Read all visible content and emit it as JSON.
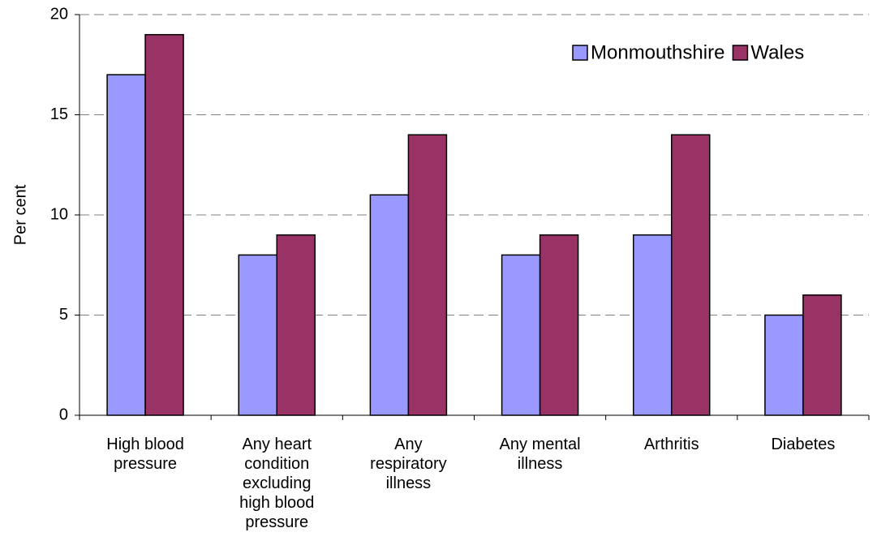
{
  "chart_data": {
    "type": "bar",
    "y_label": "Per cent",
    "categories": [
      "High blood pressure",
      "Any heart condition excluding high blood pressure",
      "Any respiratory illness",
      "Any mental illness",
      "Arthritis",
      "Diabetes"
    ],
    "series": [
      {
        "name": "Monmouthshire",
        "color": "#9999ff",
        "values": [
          17,
          8,
          11,
          8,
          9,
          5
        ]
      },
      {
        "name": "Wales",
        "color": "#993366",
        "values": [
          19,
          9,
          14,
          9,
          14,
          6
        ]
      }
    ],
    "ylim": [
      0,
      20
    ],
    "yticks": [
      0,
      5,
      10,
      15,
      20
    ],
    "grid": true,
    "legend": "top-right"
  }
}
